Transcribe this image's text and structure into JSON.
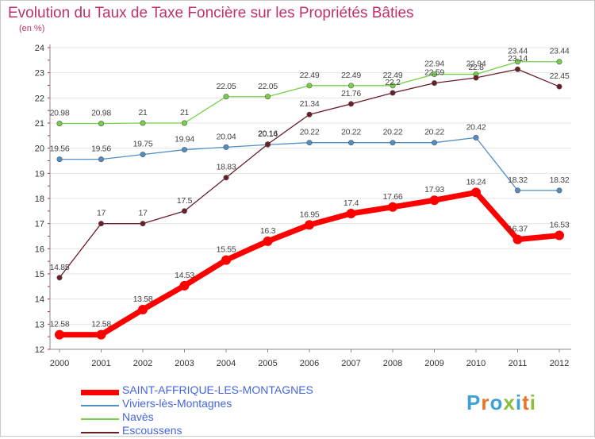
{
  "header": {
    "title": "Evolution du Taux de Taxe Foncière sur les Propriétés Bâties",
    "subtitle": "(en %)"
  },
  "chart_data": {
    "type": "line",
    "title": "Evolution du Taux de Taxe Foncière sur les Propriétés Bâties",
    "ylabel": "(en %)",
    "xlabel": "",
    "x": [
      "2000",
      "2001",
      "2002",
      "2003",
      "2004",
      "2005",
      "2006",
      "2007",
      "2008",
      "2009",
      "2010",
      "2011",
      "2012"
    ],
    "ylim": [
      12,
      24
    ],
    "yticks": [
      "12",
      "13",
      "14",
      "15",
      "16",
      "17",
      "18",
      "19",
      "20",
      "21",
      "22",
      "23",
      "24"
    ],
    "grid": "horizontal",
    "legend": "bottom-left",
    "series": [
      {
        "name": "SAINT-AFFRIQUE-LES-MONTAGNES",
        "color": "#ff0000",
        "values": [
          12.58,
          12.58,
          13.58,
          14.53,
          15.55,
          16.3,
          16.95,
          17.4,
          17.66,
          17.93,
          18.24,
          16.37,
          16.53
        ],
        "labels": [
          "12.58",
          "12.58",
          "13.58",
          "14.53",
          "15.55",
          "16.3",
          "16.95",
          "17.4",
          "17.66",
          "17.93",
          "18.24",
          "16.37",
          "16.53"
        ]
      },
      {
        "name": "Viviers-lès-Montagnes",
        "color": "#4f8fc4",
        "values": [
          19.56,
          19.56,
          19.75,
          19.94,
          20.04,
          20.14,
          20.22,
          20.22,
          20.22,
          20.22,
          20.42,
          18.32,
          18.32
        ],
        "labels": [
          "19.56",
          "19.56",
          "19.75",
          "19.94",
          "20.04",
          "20.14",
          "20.22",
          "20.22",
          "20.22",
          "20.22",
          "20.42",
          "18.32",
          "18.32"
        ]
      },
      {
        "name": "Navès",
        "color": "#77d147",
        "values": [
          20.98,
          20.98,
          21,
          21,
          22.05,
          22.05,
          22.49,
          22.49,
          22.49,
          22.94,
          22.94,
          23.44,
          23.44
        ],
        "labels": [
          "20.98",
          "20.98",
          "21",
          "21",
          "22.05",
          "22.05",
          "22.49",
          "22.49",
          "22.49",
          "22.94",
          "22.94",
          "23.44",
          "23.44"
        ]
      },
      {
        "name": "Escoussens",
        "color": "#6b1d28",
        "values": [
          14.85,
          17,
          17,
          17.5,
          18.83,
          20.16,
          21.34,
          21.76,
          22.2,
          22.59,
          22.8,
          23.14,
          22.45
        ],
        "labels": [
          "14.85",
          "17",
          "17",
          "17.5",
          "18.83",
          "20.16",
          "21.34",
          "21.76",
          "22.2",
          "22.59",
          "22.8",
          "23.14",
          "22.45"
        ]
      }
    ]
  },
  "logo": {
    "text": "Proxiti",
    "letters": [
      "P",
      "r",
      "o",
      "x",
      "i",
      "t",
      "i"
    ],
    "colors": [
      "#3fa0d8",
      "#e8742a",
      "#3fa0d8",
      "#8bbf3a",
      "#3fa0d8",
      "#e8742a",
      "#8bbf3a"
    ]
  }
}
